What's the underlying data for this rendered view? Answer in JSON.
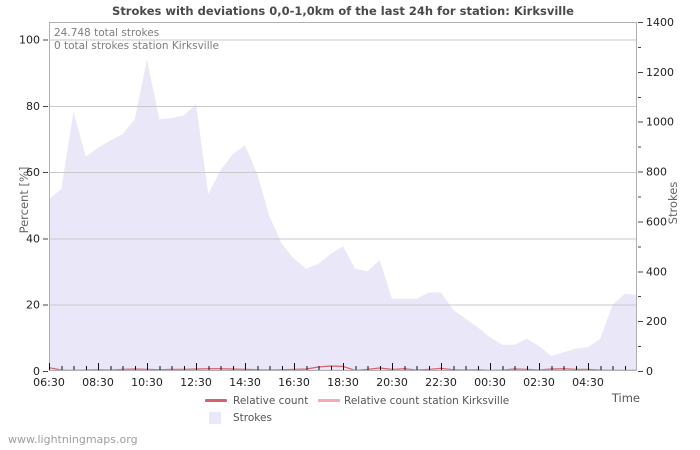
{
  "watermark": "www.lightningmaps.org",
  "chart": {
    "title": "Strokes with deviations 0,0-1,0km of the last 24h for station: Kirksville",
    "annotation_total": "24.748 total strokes",
    "annotation_station": "0 total strokes station Kirksville",
    "axis_left_label": "Percent [%]",
    "axis_right_label": "Strokes",
    "axis_x_label": "Time",
    "legend": [
      {
        "label": "Relative count",
        "type": "line",
        "color": "#d4626e"
      },
      {
        "label": "Relative count station Kirksville",
        "type": "line",
        "color": "#f3abb1"
      },
      {
        "label": "Strokes",
        "type": "area",
        "color": "#e9e7f8"
      }
    ]
  },
  "chart_data": {
    "type": "area",
    "title": "Strokes with deviations 0,0-1,0km of the last 24h for station: Kirksville",
    "xlabel": "Time",
    "ylabel_left": "Percent [%]",
    "ylabel_right": "Strokes",
    "grid": true,
    "legend_position": "bottom",
    "annotations": [
      "24.748 total strokes",
      "0 total strokes station Kirksville"
    ],
    "xticks": [
      "06:30",
      "08:30",
      "10:30",
      "12:30",
      "14:30",
      "16:30",
      "18:30",
      "20:30",
      "22:30",
      "00:30",
      "02:30",
      "04:30"
    ],
    "x_minor_tick_minutes": 30,
    "yticks_left": [
      0,
      20,
      40,
      60,
      80,
      100
    ],
    "yticks_right": [
      0,
      200,
      400,
      600,
      800,
      1000,
      1200,
      1400
    ],
    "y_right_minor_step": 100,
    "ylim_left": [
      0,
      105.3
    ],
    "ylim_right": [
      0,
      1400
    ],
    "categories": [
      "06:30",
      "07:00",
      "07:30",
      "08:00",
      "08:30",
      "09:00",
      "09:30",
      "10:00",
      "10:30",
      "11:00",
      "11:30",
      "12:00",
      "12:30",
      "13:00",
      "13:30",
      "14:00",
      "14:30",
      "15:00",
      "15:30",
      "16:00",
      "16:30",
      "17:00",
      "17:30",
      "18:00",
      "18:30",
      "19:00",
      "19:30",
      "20:00",
      "20:30",
      "21:00",
      "21:30",
      "22:00",
      "22:30",
      "23:00",
      "23:30",
      "00:00",
      "00:30",
      "01:00",
      "01:30",
      "02:00",
      "02:30",
      "03:00",
      "03:30",
      "04:00",
      "04:30",
      "05:00",
      "05:30",
      "06:00",
      "06:30"
    ],
    "series": [
      {
        "name": "Strokes",
        "type": "area",
        "axis": "right",
        "color": "#e9e7f8",
        "values": [
          690,
          730,
          1040,
          860,
          895,
          925,
          950,
          1010,
          1250,
          1010,
          1015,
          1025,
          1070,
          710,
          805,
          870,
          905,
          790,
          620,
          510,
          450,
          410,
          430,
          470,
          500,
          410,
          400,
          445,
          290,
          290,
          290,
          315,
          315,
          245,
          210,
          175,
          135,
          105,
          105,
          130,
          100,
          60,
          75,
          90,
          95,
          130,
          265,
          310,
          305
        ]
      },
      {
        "name": "Relative count",
        "type": "line",
        "axis": "left",
        "color": "#d4626e",
        "values": [
          1.0,
          0.3,
          0.2,
          0.3,
          0.4,
          0.3,
          0.5,
          0.6,
          0.5,
          0.4,
          0.5,
          0.5,
          0.6,
          0.7,
          0.7,
          0.6,
          0.5,
          0.4,
          0.3,
          0.4,
          0.5,
          0.6,
          1.2,
          1.5,
          1.4,
          0.2,
          0.5,
          0.9,
          0.5,
          0.7,
          0.3,
          0.5,
          0.8,
          0.4,
          0.3,
          0.4,
          0.2,
          0.3,
          0.6,
          0.5,
          0.3,
          0.6,
          0.7,
          0.5,
          0.5,
          0.3,
          0.1,
          0.2,
          0.1
        ]
      },
      {
        "name": "Relative count station Kirksville",
        "type": "line",
        "axis": "left",
        "color": "#f3abb1",
        "values": [
          0,
          0,
          0,
          0,
          0,
          0,
          0,
          0,
          0,
          0,
          0,
          0,
          0,
          0,
          0,
          0,
          0,
          0,
          0,
          0,
          0,
          0,
          0,
          0,
          0,
          0,
          0,
          0,
          0,
          0,
          0,
          0,
          0,
          0,
          0,
          0,
          0,
          0,
          0,
          0,
          0,
          0,
          0,
          0,
          0,
          0,
          0,
          0,
          0
        ]
      }
    ]
  }
}
